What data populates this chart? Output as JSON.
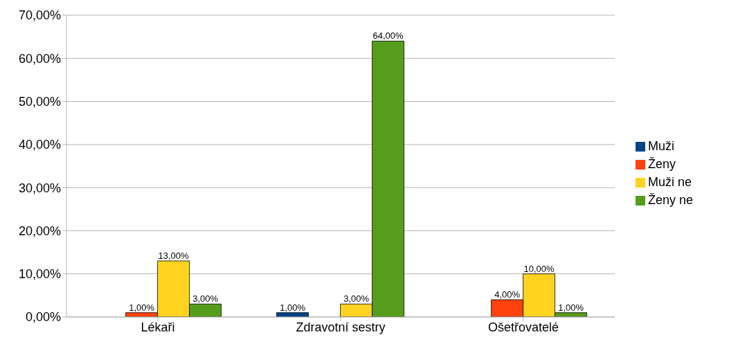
{
  "chart_data": {
    "type": "bar",
    "categories": [
      "Lékaři",
      "Zdravotní sestry",
      "Ošetřovatelé"
    ],
    "series": [
      {
        "name": "Muži",
        "color": "#004586",
        "values": [
          0,
          1,
          0
        ],
        "value_labels": [
          null,
          "1,00%",
          null
        ]
      },
      {
        "name": "Ženy",
        "color": "#ff420e",
        "values": [
          1,
          0,
          4
        ],
        "value_labels": [
          "1,00%",
          null,
          "4,00%"
        ]
      },
      {
        "name": "Muži ne",
        "color": "#ffd320",
        "values": [
          13,
          3,
          10
        ],
        "value_labels": [
          "13,00%",
          "3,00%",
          "10,00%"
        ]
      },
      {
        "name": "Ženy ne",
        "color": "#579d1c",
        "values": [
          3,
          64,
          1
        ],
        "value_labels": [
          "3,00%",
          "64,00%",
          "1,00%"
        ]
      }
    ],
    "ylim": [
      0,
      70
    ],
    "yticks": [
      {
        "value": 0,
        "label": "0,00%"
      },
      {
        "value": 10,
        "label": "10,00%"
      },
      {
        "value": 20,
        "label": "20,00%"
      },
      {
        "value": 30,
        "label": "30,00%"
      },
      {
        "value": 40,
        "label": "40,00%"
      },
      {
        "value": 50,
        "label": "50,00%"
      },
      {
        "value": 60,
        "label": "60,00%"
      },
      {
        "value": 70,
        "label": "70,00%"
      }
    ],
    "grid": "y",
    "legend": "right"
  }
}
